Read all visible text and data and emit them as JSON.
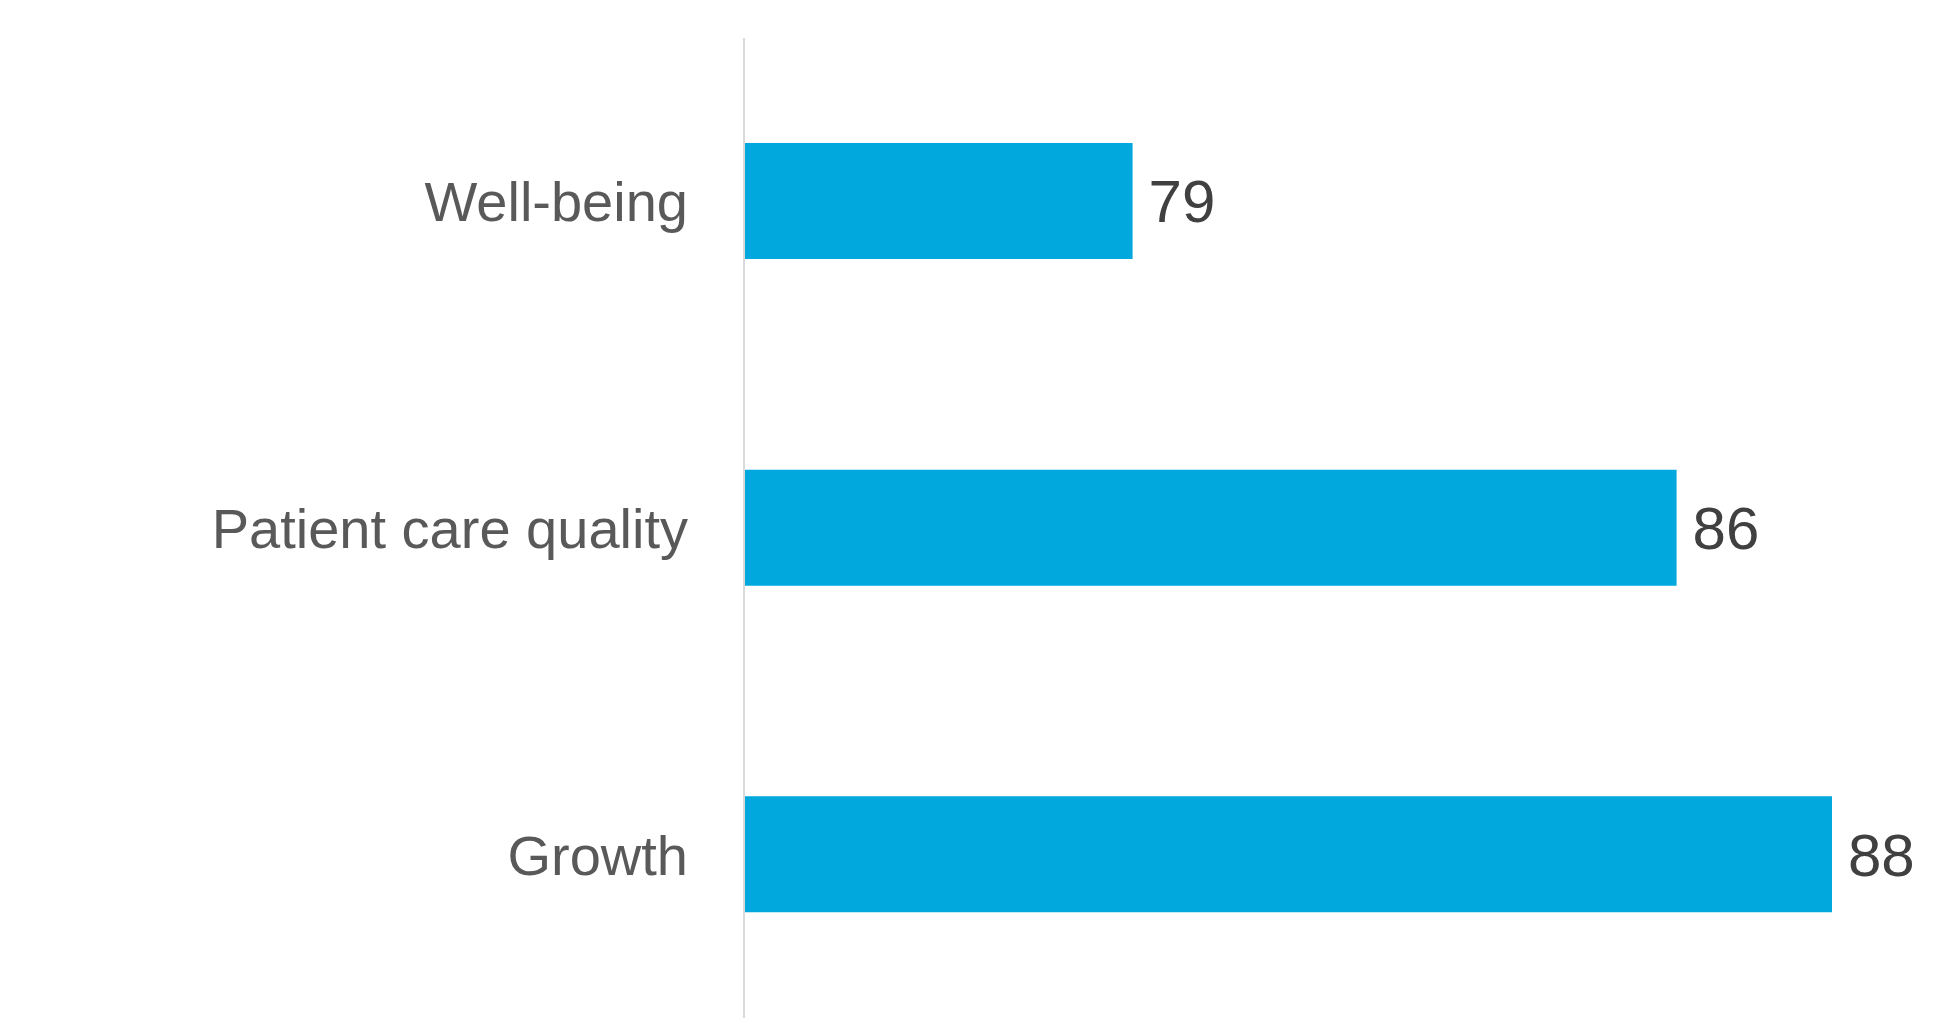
{
  "chart_data": {
    "type": "bar",
    "orientation": "horizontal",
    "categories": [
      "Well-being",
      "Patient care quality",
      "Growth"
    ],
    "values": [
      79,
      86,
      88
    ],
    "color": "#00a8de",
    "xlim": [
      74,
      88
    ],
    "data_labels": true,
    "tick_labels": "y"
  }
}
